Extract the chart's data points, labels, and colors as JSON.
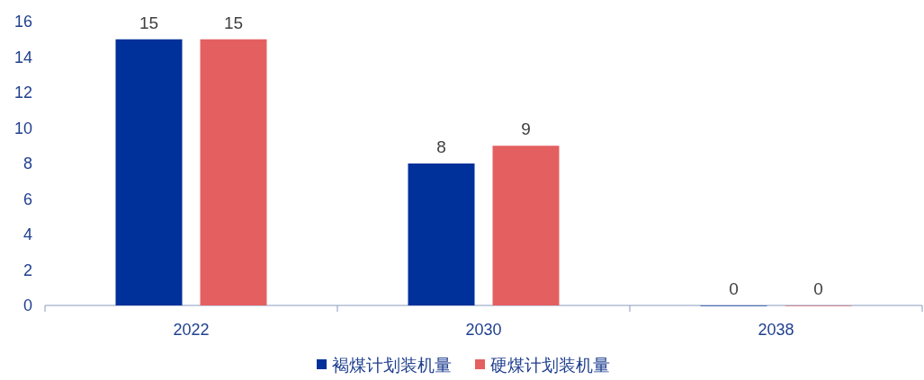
{
  "chart_data": {
    "type": "bar",
    "categories": [
      "2022",
      "2030",
      "2038"
    ],
    "series": [
      {
        "name": "褐煤计划装机量",
        "color": "#00309a",
        "values": [
          15,
          8,
          0
        ]
      },
      {
        "name": "硬煤计划装机量",
        "color": "#e46060",
        "values": [
          15,
          9,
          0
        ]
      }
    ],
    "ylim": [
      0,
      16
    ],
    "yticks": [
      0,
      2,
      4,
      6,
      8,
      10,
      12,
      14,
      16
    ],
    "data_labels": true,
    "legend": "bottom",
    "grid": false
  }
}
